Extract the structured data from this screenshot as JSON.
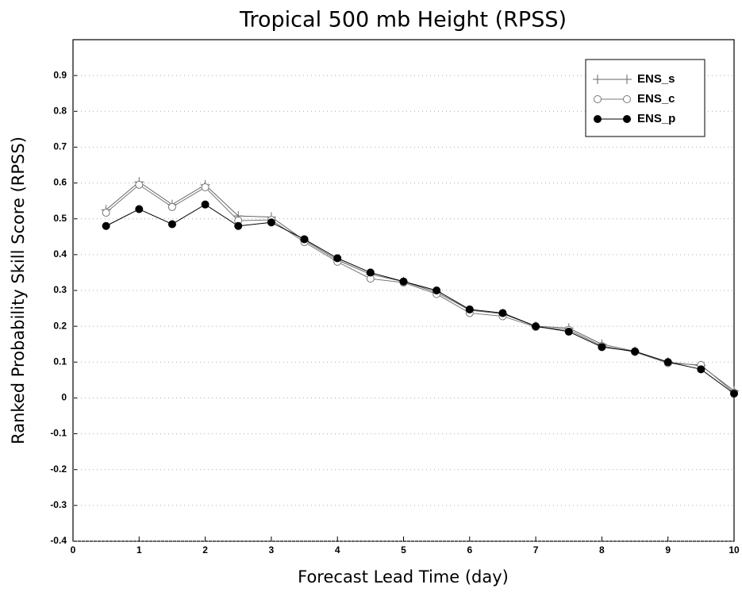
{
  "chart_data": {
    "type": "line",
    "title": "Tropical 500 mb Height (RPSS)",
    "x_label": "Forecast Lead Time (day)",
    "y_label": "Ranked Probability Skill Score (RPSS)",
    "x": [
      0.5,
      1,
      1.5,
      2,
      2.5,
      3,
      3.5,
      4,
      4.5,
      5,
      5.5,
      6,
      6.5,
      7,
      7.5,
      8,
      8.5,
      9,
      9.5,
      10
    ],
    "series": [
      {
        "name": "ENS_s",
        "color": "#666666",
        "marker": "plus",
        "values": [
          0.525,
          0.603,
          0.54,
          0.595,
          0.508,
          0.505,
          0.44,
          0.385,
          0.345,
          0.325,
          0.295,
          0.245,
          0.235,
          0.2,
          0.195,
          0.15,
          0.13,
          0.1,
          0.09,
          0.02
        ]
      },
      {
        "name": "ENS_c",
        "color": "#777777",
        "marker": "open-circle",
        "values": [
          0.517,
          0.595,
          0.533,
          0.588,
          0.495,
          0.497,
          0.435,
          0.38,
          0.333,
          0.322,
          0.29,
          0.237,
          0.228,
          0.198,
          0.19,
          0.145,
          0.128,
          0.097,
          0.092,
          0.015
        ]
      },
      {
        "name": "ENS_p",
        "color": "#000000",
        "marker": "filled-circle",
        "values": [
          0.48,
          0.527,
          0.485,
          0.54,
          0.48,
          0.49,
          0.443,
          0.39,
          0.35,
          0.325,
          0.3,
          0.247,
          0.237,
          0.2,
          0.185,
          0.142,
          0.13,
          0.1,
          0.08,
          0.012
        ]
      }
    ],
    "xlim": [
      0,
      10
    ],
    "xticks": [
      0,
      1,
      2,
      3,
      4,
      5,
      6,
      7,
      8,
      9,
      10
    ],
    "ylim": [
      -0.4,
      1.0
    ],
    "yticks": [
      -0.4,
      -0.3,
      -0.2,
      -0.1,
      0,
      0.1,
      0.2,
      0.3,
      0.4,
      0.5,
      0.6,
      0.7,
      0.8,
      0.9
    ],
    "grid": true,
    "legend": "upper right"
  }
}
